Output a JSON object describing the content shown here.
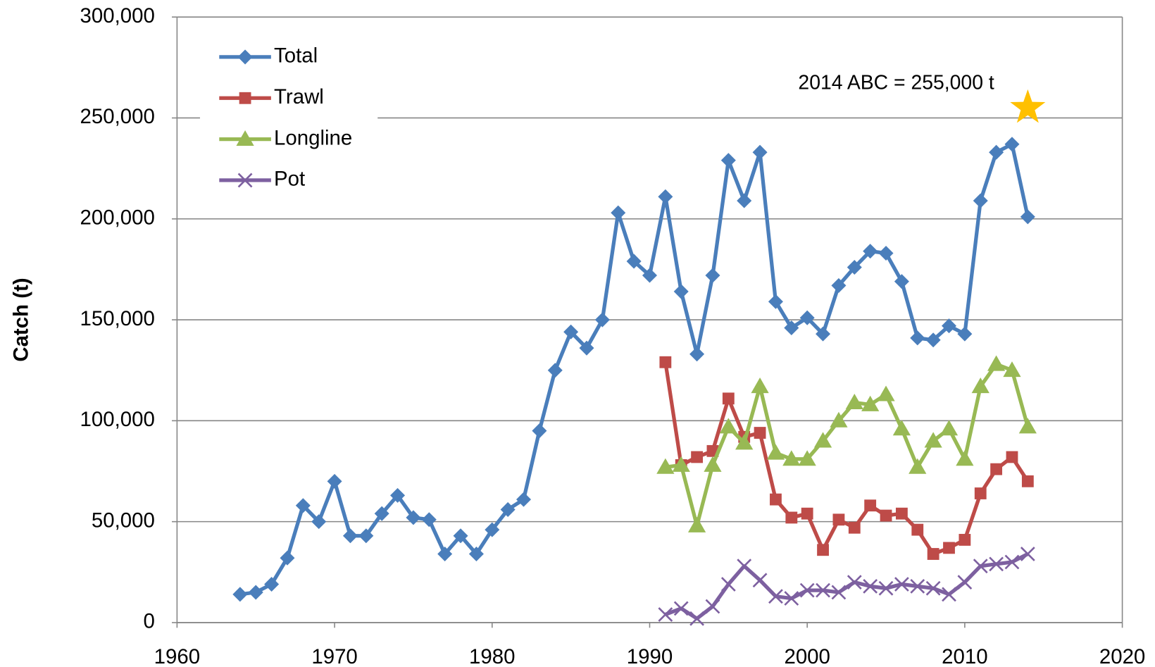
{
  "chart_data": {
    "type": "line",
    "y_label": "Catch (t)",
    "annotation": "2014 ABC = 255,000 t",
    "abc_point": {
      "x": 2014,
      "y": 255000,
      "color": "#ffc000"
    },
    "x": [
      1964,
      1965,
      1966,
      1967,
      1968,
      1969,
      1970,
      1971,
      1972,
      1973,
      1974,
      1975,
      1976,
      1977,
      1978,
      1979,
      1980,
      1981,
      1982,
      1983,
      1984,
      1985,
      1986,
      1987,
      1988,
      1989,
      1990,
      1991,
      1992,
      1993,
      1994,
      1995,
      1996,
      1997,
      1998,
      1999,
      2000,
      2001,
      2002,
      2003,
      2004,
      2005,
      2006,
      2007,
      2008,
      2009,
      2010,
      2011,
      2012,
      2013,
      2014
    ],
    "series": [
      {
        "name": "Total",
        "color": "#4a7ebb",
        "marker": "diamond",
        "values": [
          14000,
          15000,
          19000,
          32000,
          58000,
          50000,
          70000,
          43000,
          43000,
          54000,
          63000,
          52000,
          51000,
          34000,
          43000,
          34000,
          46000,
          56000,
          61000,
          95000,
          125000,
          144000,
          136000,
          150000,
          203000,
          179000,
          172000,
          211000,
          164000,
          133000,
          172000,
          229000,
          209000,
          233000,
          159000,
          146000,
          151000,
          143000,
          167000,
          176000,
          184000,
          183000,
          169000,
          141000,
          140000,
          147000,
          143000,
          209000,
          233000,
          237000,
          201000
        ]
      },
      {
        "name": "Trawl",
        "color": "#be4b48",
        "marker": "square",
        "values": [
          null,
          null,
          null,
          null,
          null,
          null,
          null,
          null,
          null,
          null,
          null,
          null,
          null,
          null,
          null,
          null,
          null,
          null,
          null,
          null,
          null,
          null,
          null,
          null,
          null,
          null,
          null,
          129000,
          78000,
          82000,
          85000,
          111000,
          92000,
          94000,
          61000,
          52000,
          54000,
          36000,
          51000,
          47000,
          58000,
          53000,
          54000,
          46000,
          34000,
          37000,
          41000,
          64000,
          76000,
          82000,
          70000
        ]
      },
      {
        "name": "Longline",
        "color": "#98b954",
        "marker": "triangle",
        "values": [
          null,
          null,
          null,
          null,
          null,
          null,
          null,
          null,
          null,
          null,
          null,
          null,
          null,
          null,
          null,
          null,
          null,
          null,
          null,
          null,
          null,
          null,
          null,
          null,
          null,
          null,
          null,
          77000,
          78000,
          48000,
          78000,
          97000,
          89000,
          117000,
          84000,
          81000,
          81000,
          90000,
          100000,
          109000,
          108000,
          113000,
          96000,
          77000,
          90000,
          96000,
          81000,
          117000,
          128000,
          125000,
          97000
        ]
      },
      {
        "name": "Pot",
        "color": "#7d60a0",
        "marker": "x",
        "values": [
          null,
          null,
          null,
          null,
          null,
          null,
          null,
          null,
          null,
          null,
          null,
          null,
          null,
          null,
          null,
          null,
          null,
          null,
          null,
          null,
          null,
          null,
          null,
          null,
          null,
          null,
          null,
          4000,
          7000,
          2000,
          8000,
          19000,
          28000,
          21000,
          13000,
          12000,
          16000,
          16000,
          15000,
          20000,
          18000,
          17000,
          19000,
          18000,
          17000,
          14000,
          20000,
          28000,
          29000,
          30000,
          34000
        ]
      }
    ],
    "xlim": [
      1960,
      2020
    ],
    "xticks": [
      1960,
      1970,
      1980,
      1990,
      2000,
      2010,
      2020
    ],
    "ylim": [
      0,
      300000
    ],
    "yticks": [
      0,
      {
        "value": 50000,
        "label": "50,000"
      },
      {
        "value": 100000,
        "label": "100,000"
      },
      {
        "value": 150000,
        "label": "150,000"
      },
      {
        "value": 200000,
        "label": "200,000"
      },
      {
        "value": 250000,
        "label": "250,000"
      },
      {
        "value": 300000,
        "label": "300,000"
      }
    ],
    "grid": true,
    "legend": "upper left"
  }
}
